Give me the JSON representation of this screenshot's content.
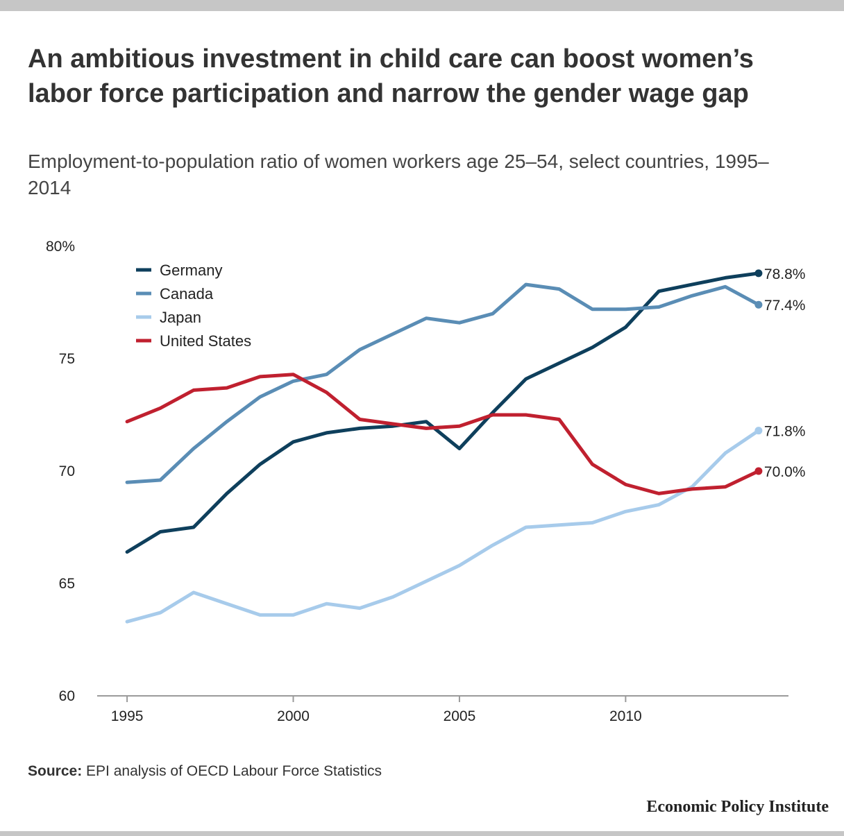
{
  "header": {
    "title": "An ambitious investment in child care can boost women’s labor force participation and narrow the gender wage gap",
    "subtitle": "Employment-to-population ratio of women workers age 25–54, select countries, 1995–2014"
  },
  "footer": {
    "source_label": "Source:",
    "source_text": " EPI analysis of OECD Labour Force Statistics",
    "brand": "Economic Policy Institute"
  },
  "chart_data": {
    "type": "line",
    "title": "An ambitious investment in child care can boost women’s labor force participation and narrow the gender wage gap",
    "subtitle": "Employment-to-population ratio of women workers age 25–54, select countries, 1995–2014",
    "xlabel": "",
    "ylabel": "",
    "x": [
      1995,
      1996,
      1997,
      1998,
      1999,
      2000,
      2001,
      2002,
      2003,
      2004,
      2005,
      2006,
      2007,
      2008,
      2009,
      2010,
      2011,
      2012,
      2013,
      2014
    ],
    "xlim": [
      1994.1,
      2014.9
    ],
    "xticks": [
      1995,
      2000,
      2005,
      2010
    ],
    "ylim": [
      60,
      80
    ],
    "yticks": [
      60,
      65,
      70,
      75,
      80
    ],
    "ytick_labels": [
      "60",
      "65",
      "70",
      "75",
      "80%"
    ],
    "grid": false,
    "legend_position": "top-left",
    "series": [
      {
        "name": "Germany",
        "color": "#0e3f5c",
        "values": [
          66.4,
          67.3,
          67.5,
          69.0,
          70.3,
          71.3,
          71.7,
          71.9,
          72.0,
          72.2,
          71.0,
          72.6,
          74.1,
          74.8,
          75.5,
          76.4,
          78.0,
          78.3,
          78.6,
          78.8
        ],
        "end_label": "78.8%"
      },
      {
        "name": "Canada",
        "color": "#5a8db5",
        "values": [
          69.5,
          69.6,
          71.0,
          72.2,
          73.3,
          74.0,
          74.3,
          75.4,
          76.1,
          76.8,
          76.6,
          77.0,
          78.3,
          78.1,
          77.2,
          77.2,
          77.3,
          77.8,
          78.2,
          77.4
        ],
        "end_label": "77.4%"
      },
      {
        "name": "Japan",
        "color": "#a7cbeb",
        "values": [
          63.3,
          63.7,
          64.6,
          64.1,
          63.6,
          63.6,
          64.1,
          63.9,
          64.4,
          65.1,
          65.8,
          66.7,
          67.5,
          67.6,
          67.7,
          68.2,
          68.5,
          69.3,
          70.8,
          71.8
        ],
        "end_label": "71.8%"
      },
      {
        "name": "United States",
        "color": "#c0202f",
        "values": [
          72.2,
          72.8,
          73.6,
          73.7,
          74.2,
          74.3,
          73.5,
          72.3,
          72.1,
          71.9,
          72.0,
          72.5,
          72.5,
          72.3,
          70.3,
          69.4,
          69.0,
          69.2,
          69.3,
          70.0
        ],
        "end_label": "70.0%"
      }
    ]
  }
}
